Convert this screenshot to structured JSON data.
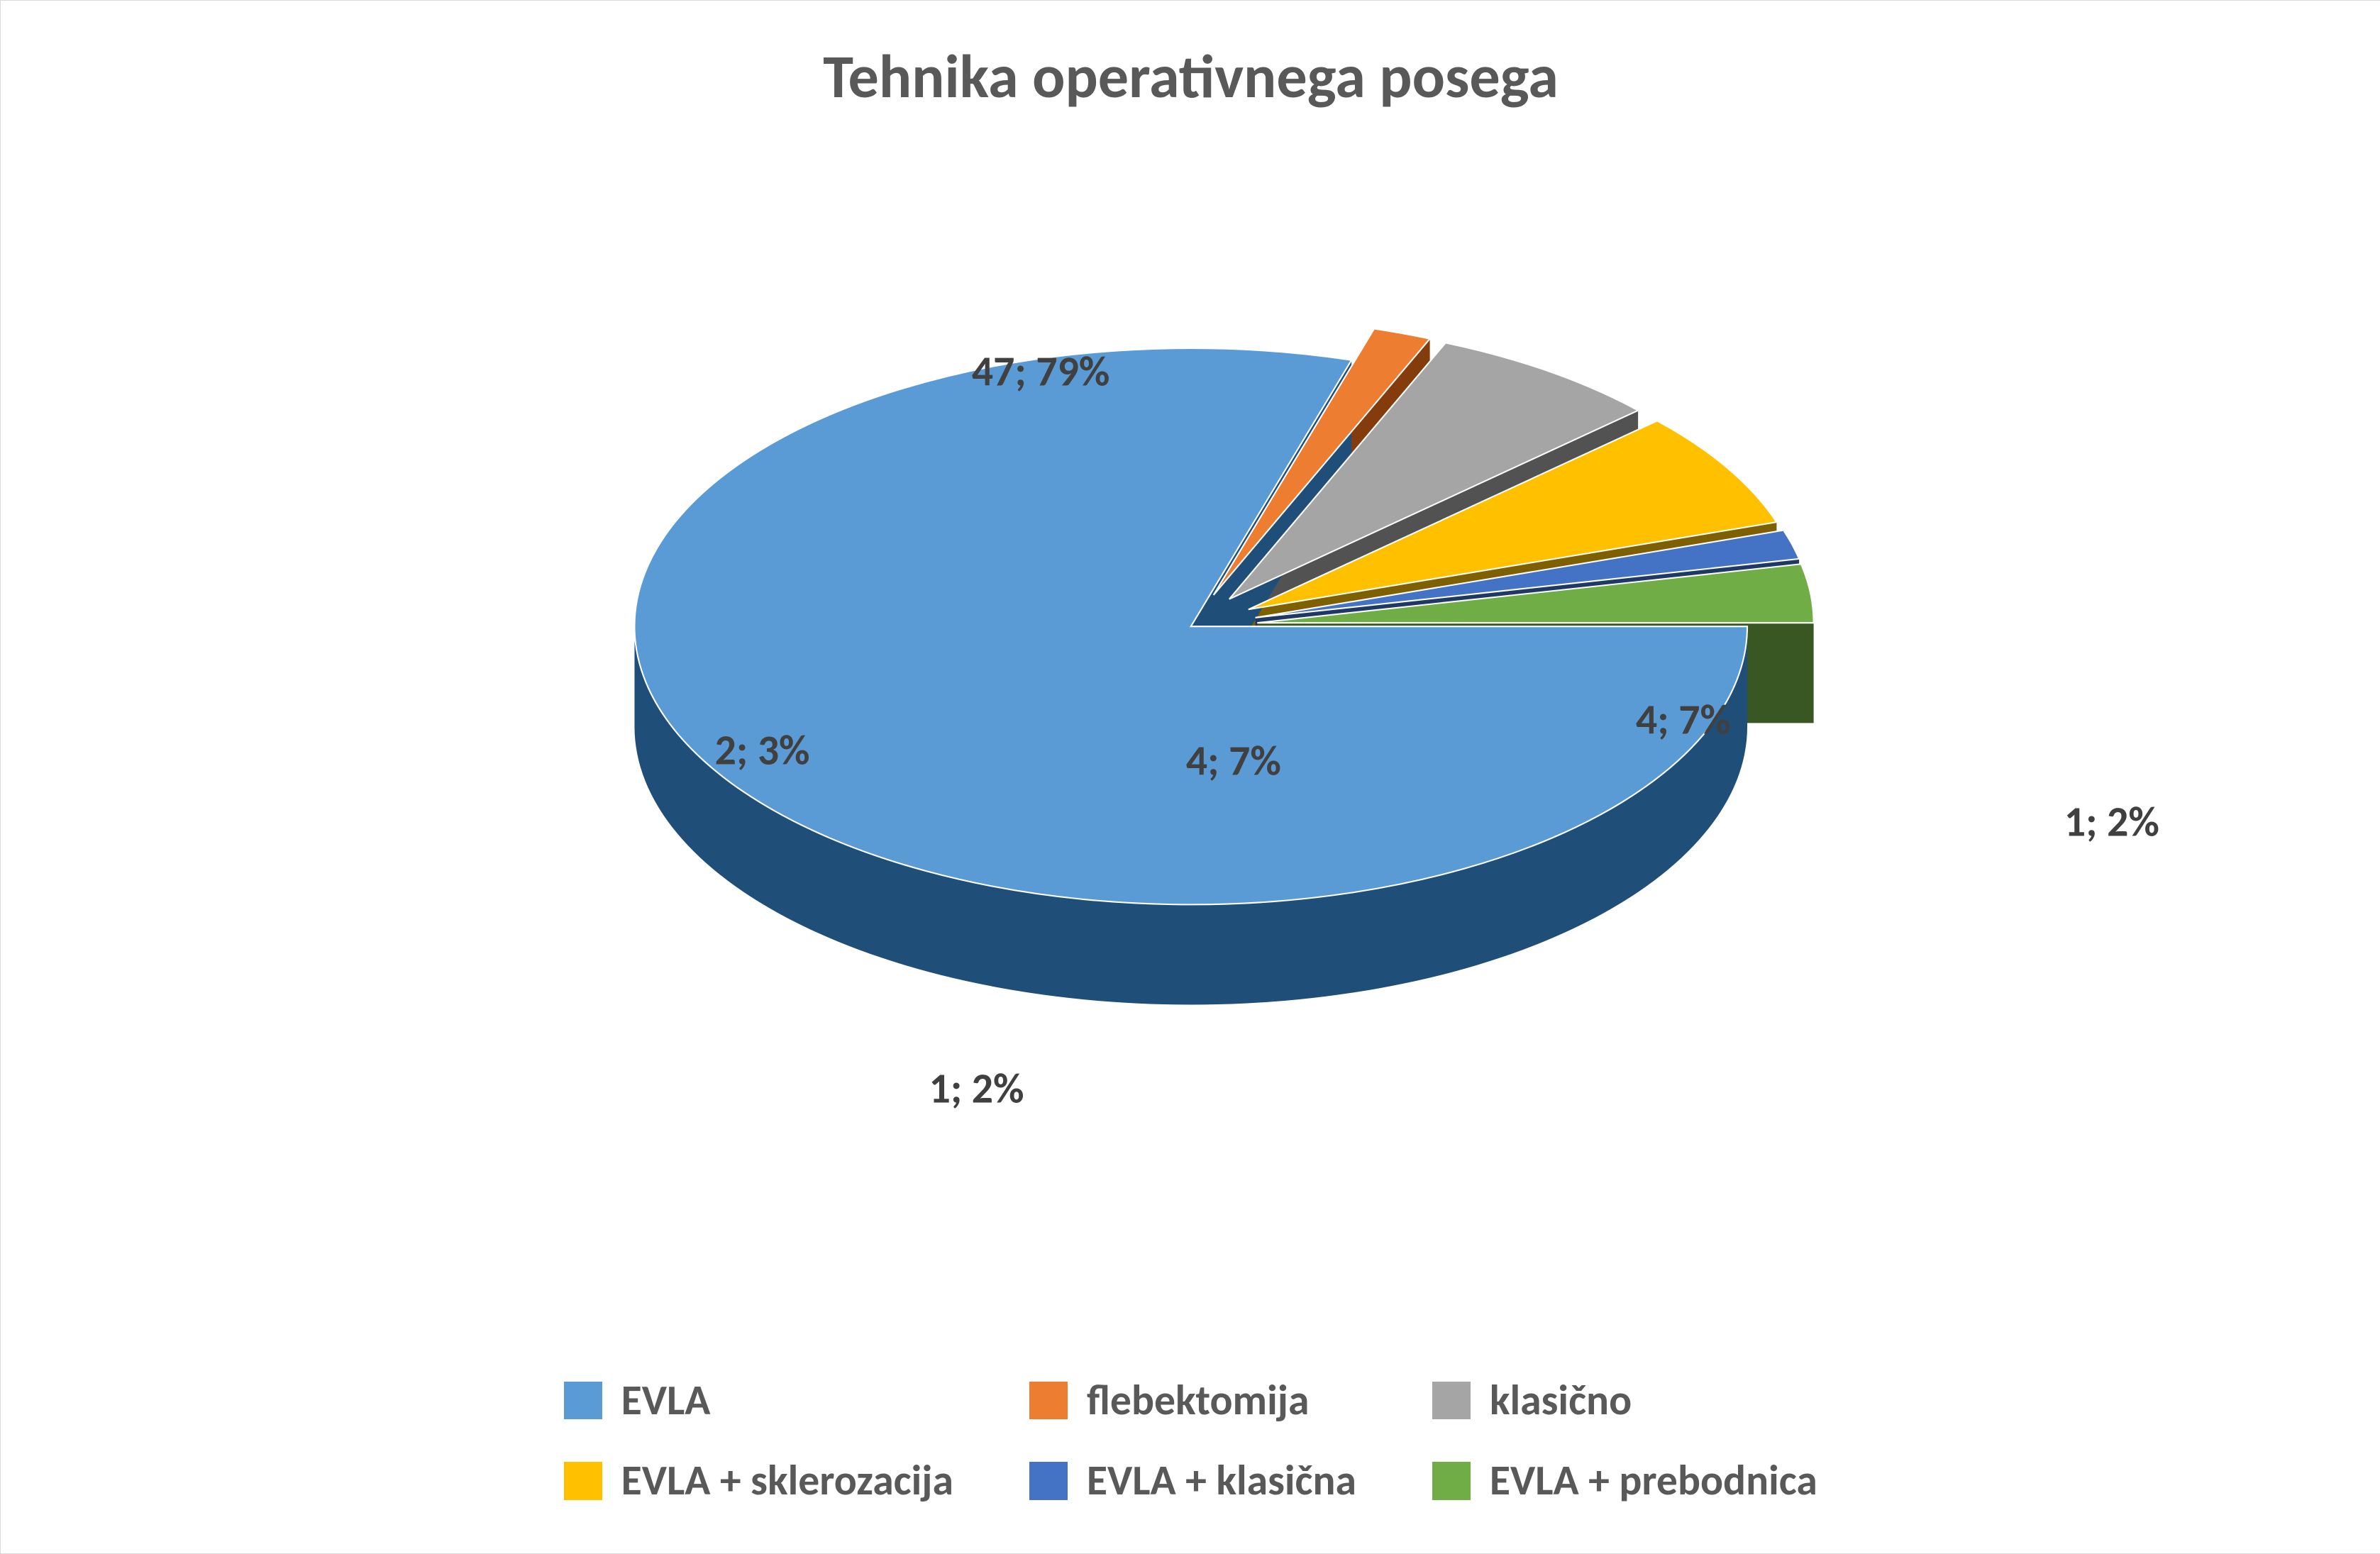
{
  "chart": {
    "type": "pie-3d-exploded",
    "title": "Tehnika operativnega posega",
    "title_fontsize_pt": 40,
    "title_color": "#595959",
    "title_font_weight": "bold",
    "background_color": "#ffffff",
    "border_color": "#d9d9d9",
    "label_fontsize_pt": 32,
    "label_color": "#404040",
    "label_font_weight": "bold",
    "legend_fontsize_pt": 32,
    "legend_color": "#595959",
    "legend_font_weight": "bold",
    "legend_position": "bottom",
    "legend_columns": 3,
    "pie_tilt_deg": 60,
    "pie_depth_ratio": 0.18,
    "explode_offset_ratio": 0.12,
    "start_angle_deg": 0,
    "series": [
      {
        "name": "EVLA",
        "value": 47,
        "percent": 79,
        "color": "#5b9bd5",
        "side_color": "#1f4e79",
        "exploded": false,
        "label": "47; 79%",
        "label_x_pct": 43,
        "label_y_pct": 18
      },
      {
        "name": "flebektomija",
        "value": 1,
        "percent": 2,
        "color": "#ed7d31",
        "side_color": "#843c0c",
        "exploded": true,
        "label": "1; 2%",
        "label_x_pct": 93,
        "label_y_pct": 62
      },
      {
        "name": "klasično",
        "value": 4,
        "percent": 7,
        "color": "#a5a5a5",
        "side_color": "#525252",
        "exploded": true,
        "label": "4; 7%",
        "label_x_pct": 73,
        "label_y_pct": 52
      },
      {
        "name": "EVLA + sklerozacija",
        "value": 4,
        "percent": 7,
        "color": "#ffc000",
        "side_color": "#7f6000",
        "exploded": true,
        "label": "4; 7%",
        "label_x_pct": 52,
        "label_y_pct": 56
      },
      {
        "name": "EVLA + klasična",
        "value": 1,
        "percent": 2,
        "color": "#4472c4",
        "side_color": "#203864",
        "exploded": true,
        "label": "1; 2%",
        "label_x_pct": 40,
        "label_y_pct": 88
      },
      {
        "name": "EVLA + prebodnica",
        "value": 2,
        "percent": 3,
        "color": "#70ad47",
        "side_color": "#385723",
        "exploded": true,
        "label": "2; 3%",
        "label_x_pct": 30,
        "label_y_pct": 55
      }
    ]
  }
}
